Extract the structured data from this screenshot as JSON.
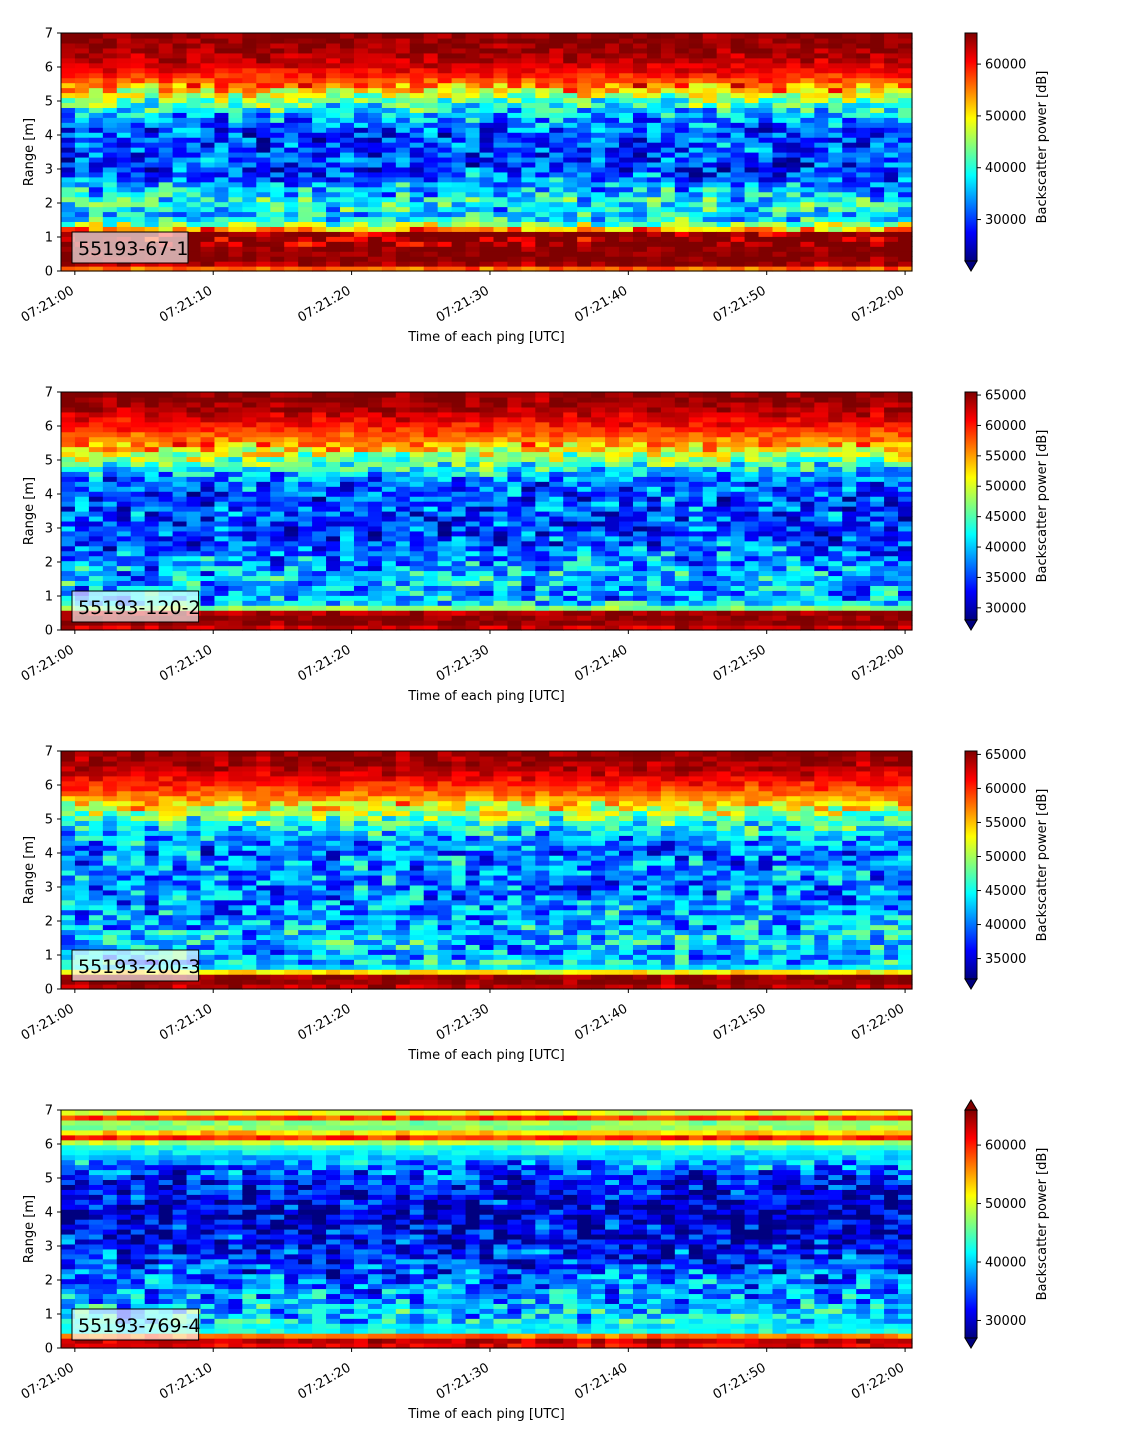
{
  "figure": {
    "colormap": "jet",
    "colormap_stops": [
      "#00007f",
      "#0000ff",
      "#007fff",
      "#00ffff",
      "#7fff7f",
      "#ffff00",
      "#ff7f00",
      "#ff0000",
      "#7f0000"
    ],
    "label_box_color": "#ffffff"
  },
  "chart_data": [
    {
      "type": "heatmap",
      "title": "",
      "annotation": "55193-67-1",
      "xlabel": "Time of each ping [UTC]",
      "ylabel": "Range [m]",
      "x_tick_labels": [
        "07:21:00",
        "07:21:10",
        "07:21:20",
        "07:21:30",
        "07:21:40",
        "07:21:50",
        "07:22:00"
      ],
      "x_range": [
        "07:20:59",
        "07:22:00"
      ],
      "y_ticks": [
        0,
        1,
        2,
        3,
        4,
        5,
        6,
        7
      ],
      "ylim": [
        0,
        7
      ],
      "colorbar_label": "Backscatter power [dB]",
      "colorbar_ticks": [
        30000,
        40000,
        50000,
        60000
      ],
      "clim": [
        22000,
        66000
      ],
      "colorbar_extend": "min",
      "profile": {
        "range_m": [
          0,
          0.25,
          1.1,
          1.3,
          1.6,
          2.0,
          2.5,
          3.0,
          3.5,
          4.0,
          4.5,
          5.0,
          5.5,
          6.0,
          6.5,
          7.0
        ],
        "power": [
          52000,
          66000,
          66000,
          48000,
          36000,
          39000,
          35000,
          30000,
          31000,
          30000,
          34000,
          43000,
          56000,
          62000,
          65000,
          66000
        ]
      }
    },
    {
      "type": "heatmap",
      "title": "",
      "annotation": "55193-120-2",
      "xlabel": "Time of each ping [UTC]",
      "ylabel": "Range [m]",
      "x_tick_labels": [
        "07:21:00",
        "07:21:10",
        "07:21:20",
        "07:21:30",
        "07:21:40",
        "07:21:50",
        "07:22:00"
      ],
      "x_range": [
        "07:20:59",
        "07:22:00"
      ],
      "y_ticks": [
        0,
        1,
        2,
        3,
        4,
        5,
        6,
        7
      ],
      "ylim": [
        0,
        7
      ],
      "colorbar_label": "Backscatter power [dB]",
      "colorbar_ticks": [
        30000,
        35000,
        40000,
        45000,
        50000,
        55000,
        60000,
        65000
      ],
      "clim": [
        28000,
        65500
      ],
      "colorbar_extend": "min",
      "profile": {
        "range_m": [
          0,
          0.15,
          0.5,
          0.7,
          1.0,
          1.5,
          2.0,
          2.5,
          3.0,
          3.5,
          4.0,
          4.5,
          5.0,
          5.5,
          6.0,
          6.5,
          7.0
        ],
        "power": [
          60000,
          65000,
          65000,
          42000,
          38000,
          40000,
          38000,
          36000,
          34000,
          36000,
          35000,
          38000,
          46000,
          55000,
          60000,
          64000,
          65000
        ]
      }
    },
    {
      "type": "heatmap",
      "title": "",
      "annotation": "55193-200-3",
      "xlabel": "Time of each ping [UTC]",
      "ylabel": "Range [m]",
      "x_tick_labels": [
        "07:21:00",
        "07:21:10",
        "07:21:20",
        "07:21:30",
        "07:21:40",
        "07:21:50",
        "07:22:00"
      ],
      "x_range": [
        "07:20:59",
        "07:22:00"
      ],
      "y_ticks": [
        0,
        1,
        2,
        3,
        4,
        5,
        6,
        7
      ],
      "ylim": [
        0,
        7
      ],
      "colorbar_label": "Backscatter power [dB]",
      "colorbar_ticks": [
        35000,
        40000,
        45000,
        50000,
        55000,
        60000,
        65000
      ],
      "clim": [
        32000,
        65500
      ],
      "colorbar_extend": "min",
      "profile": {
        "range_m": [
          0,
          0.1,
          0.4,
          0.6,
          1.0,
          1.5,
          2.0,
          2.5,
          3.0,
          3.5,
          4.0,
          4.5,
          5.0,
          5.5,
          6.0,
          6.5,
          7.0
        ],
        "power": [
          60000,
          65000,
          65000,
          44000,
          42000,
          43000,
          42000,
          41000,
          40000,
          41000,
          40000,
          42000,
          47000,
          55000,
          60000,
          64000,
          65000
        ]
      }
    },
    {
      "type": "heatmap",
      "title": "",
      "annotation": "55193-769-4",
      "xlabel": "Time of each ping [UTC]",
      "ylabel": "Range [m]",
      "x_tick_labels": [
        "07:21:00",
        "07:21:10",
        "07:21:20",
        "07:21:30",
        "07:21:40",
        "07:21:50",
        "07:22:00"
      ],
      "x_range": [
        "07:20:59",
        "07:22:00"
      ],
      "y_ticks": [
        0,
        1,
        2,
        3,
        4,
        5,
        6,
        7
      ],
      "ylim": [
        0,
        7
      ],
      "colorbar_label": "Backscatter power [dB]",
      "colorbar_ticks": [
        30000,
        40000,
        50000,
        60000
      ],
      "clim": [
        27000,
        66000
      ],
      "colorbar_extend": "both",
      "profile": {
        "range_m": [
          0,
          0.2,
          0.35,
          0.5,
          1.0,
          1.5,
          2.0,
          3.0,
          4.0,
          5.0,
          5.5,
          6.0,
          6.2,
          6.4,
          6.6,
          6.8,
          7.0
        ],
        "power": [
          60000,
          64000,
          58000,
          42000,
          40000,
          38000,
          36000,
          32000,
          30000,
          33000,
          38000,
          45000,
          60000,
          50000,
          44000,
          60000,
          45000
        ]
      }
    }
  ]
}
